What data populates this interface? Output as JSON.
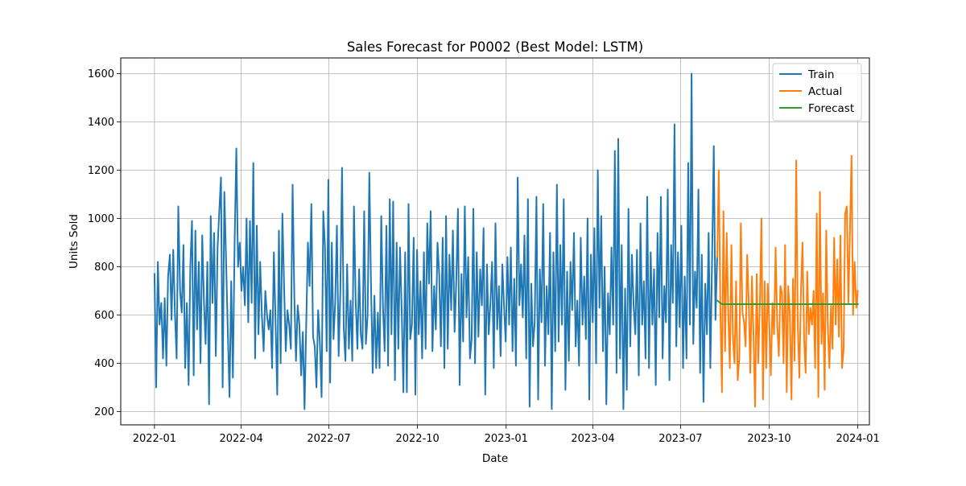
{
  "chart_data": {
    "type": "line",
    "title": "Sales Forecast for P0002 (Best Model: LSTM)",
    "xlabel": "Date",
    "ylabel": "Units Sold",
    "xlim": [
      "2021-11-27",
      "2024-01-13"
    ],
    "ylim": [
      145,
      1665
    ],
    "x_ticks": [
      "2022-01",
      "2022-04",
      "2022-07",
      "2022-10",
      "2023-01",
      "2023-04",
      "2023-07",
      "2023-10",
      "2024-01"
    ],
    "y_ticks": [
      200,
      400,
      600,
      800,
      1000,
      1200,
      1400,
      1600
    ],
    "grid": true,
    "legend_position": "top-right",
    "series": [
      {
        "name": "Train",
        "color": "#1f77b4",
        "x_start": "2022-01-01",
        "x_end": "2023-08-08",
        "values": [
          770,
          300,
          820,
          560,
          650,
          420,
          670,
          390,
          760,
          850,
          580,
          870,
          610,
          420,
          1050,
          700,
          610,
          890,
          380,
          650,
          310,
          800,
          990,
          350,
          950,
          540,
          820,
          400,
          930,
          660,
          480,
          820,
          230,
          1010,
          650,
          940,
          430,
          880,
          1030,
          1170,
          300,
          1110,
          820,
          530,
          260,
          740,
          340,
          890,
          1290,
          800,
          900,
          700,
          800,
          640,
          1000,
          570,
          990,
          650,
          1230,
          420,
          970,
          520,
          820,
          600,
          450,
          700,
          600,
          540,
          620,
          380,
          860,
          570,
          270,
          950,
          400,
          1020,
          720,
          450,
          620,
          560,
          460,
          1140,
          680,
          410,
          640,
          560,
          350,
          530,
          210,
          560,
          900,
          720,
          1060,
          510,
          470,
          300,
          620,
          480,
          260,
          1030,
          880,
          450,
          1160,
          320,
          900,
          500,
          650,
          970,
          430,
          700,
          1210,
          550,
          410,
          810,
          460,
          660,
          410,
          1050,
          660,
          460,
          790,
          520,
          460,
          1030,
          480,
          600,
          1190,
          720,
          360,
          680,
          380,
          610,
          380,
          1010,
          640,
          450,
          970,
          390,
          1080,
          520,
          1070,
          330,
          900,
          460,
          880,
          620,
          280,
          860,
          280,
          1060,
          500,
          560,
          920,
          270,
          870,
          520,
          740,
          420,
          860,
          460,
          980,
          730,
          1030,
          450,
          720,
          540,
          900,
          770,
          470,
          920,
          380,
          1010,
          460,
          850,
          620,
          950,
          530,
          740,
          1040,
          310,
          770,
          490,
          1050,
          590,
          840,
          420,
          500,
          1040,
          400,
          860,
          510,
          790,
          640,
          960,
          270,
          810,
          520,
          650,
          820,
          380,
          980,
          540,
          720,
          430,
          810,
          640,
          490,
          840,
          560,
          880,
          450,
          750,
          390,
          1170,
          640,
          810,
          590,
          930,
          420,
          1080,
          220,
          730,
          470,
          570,
          1090,
          250,
          790,
          570,
          1060,
          390,
          720,
          520,
          940,
          210,
          860,
          450,
          1140,
          490,
          890,
          560,
          1080,
          290,
          780,
          410,
          820,
          620,
          940,
          470,
          660,
          390,
          920,
          560,
          760,
          500,
          1000,
          250,
          850,
          570,
          960,
          400,
          1200,
          630,
          1010,
          450,
          800,
          230,
          690,
          520,
          880,
          560,
          1280,
          360,
          1330,
          420,
          890,
          210,
          710,
          290,
          1040,
          470,
          850,
          640,
          520,
          870,
          350,
          980,
          560,
          740,
          420,
          1090,
          380,
          860,
          560,
          790,
          310,
          940,
          590,
          1090,
          420,
          720,
          570,
          1120,
          330,
          890,
          650,
          1390,
          470,
          860,
          550,
          970,
          380,
          760,
          420,
          1230,
          560,
          1600,
          480,
          780,
          630,
          1120,
          360,
          850,
          240,
          730,
          520,
          940,
          380,
          820,
          1300,
          580,
          840
        ]
      },
      {
        "name": "Actual",
        "color": "#ff7f0e",
        "x_start": "2023-08-08",
        "x_end": "2024-01-01",
        "values": [
          840,
          1200,
          640,
          280,
          1030,
          450,
          940,
          620,
          380,
          890,
          500,
          400,
          740,
          330,
          420,
          980,
          610,
          570,
          470,
          850,
          640,
          360,
          760,
          520,
          220,
          770,
          400,
          640,
          1000,
          250,
          740,
          380,
          730,
          560,
          350,
          650,
          520,
          880,
          560,
          430,
          720,
          690,
          400,
          890,
          280,
          720,
          600,
          250,
          750,
          410,
          1240,
          560,
          340,
          700,
          900,
          500,
          360,
          780,
          520,
          630,
          560,
          700,
          380,
          1020,
          260,
          1110,
          480,
          690,
          290,
          950,
          560,
          380,
          640,
          460,
          920,
          560,
          830,
          510,
          930,
          380,
          460,
          1020,
          1050,
          650,
          940,
          1260,
          600,
          820,
          630,
          700
        ]
      },
      {
        "name": "Forecast",
        "color": "#2ca02c",
        "x_start": "2023-08-08",
        "x_end": "2024-01-01",
        "values": [
          660,
          645,
          645,
          645,
          645,
          645,
          645,
          645,
          645,
          645,
          645,
          645,
          645,
          645,
          645,
          645,
          645,
          645,
          645,
          645,
          645,
          645,
          645,
          645,
          645,
          645,
          645,
          645,
          645,
          645,
          645
        ]
      }
    ]
  }
}
